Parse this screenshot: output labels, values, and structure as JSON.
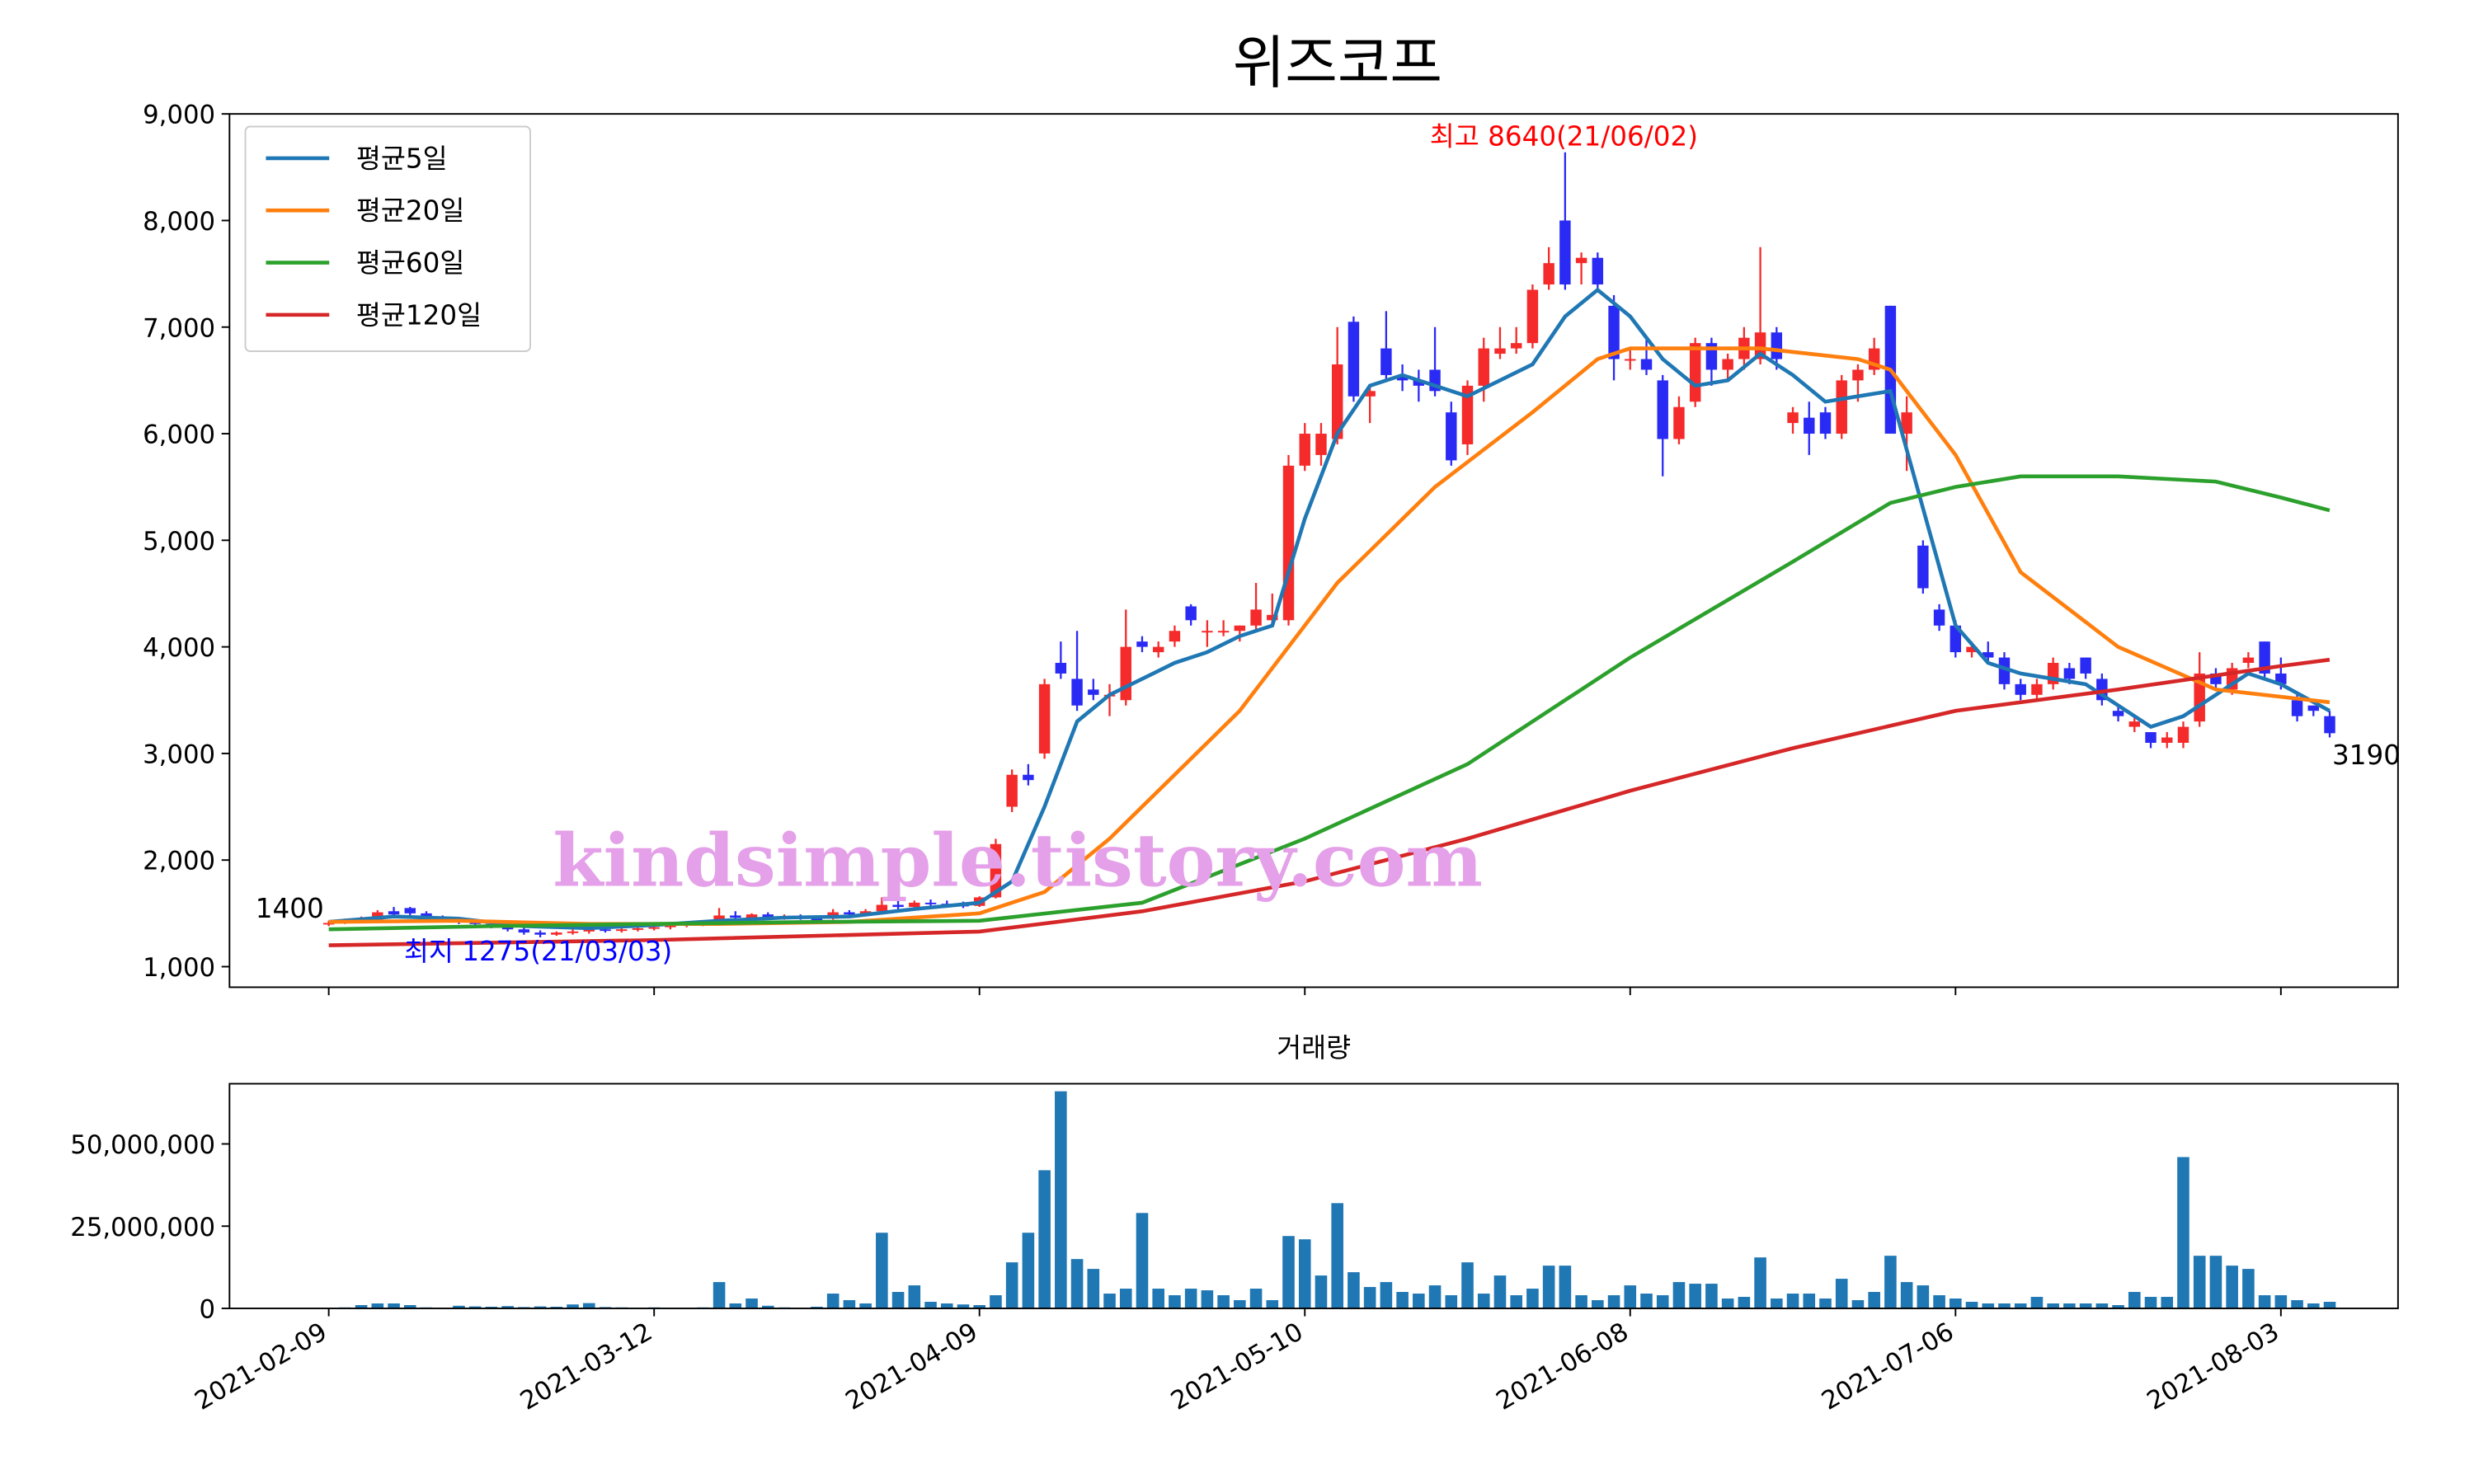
{
  "chart_data": [
    {
      "type": "candlestick",
      "title": "위즈코프",
      "xlim": [
        -6.1,
        127.2
      ],
      "ylim": [
        807,
        9000
      ],
      "yticks": [
        {
          "value": 1000,
          "label": "1,000"
        },
        {
          "value": 2000,
          "label": "2,000"
        },
        {
          "value": 3000,
          "label": "3,000"
        },
        {
          "value": 4000,
          "label": "4,000"
        },
        {
          "value": 5000,
          "label": "5,000"
        },
        {
          "value": 6000,
          "label": "6,000"
        },
        {
          "value": 7000,
          "label": "7,000"
        },
        {
          "value": 8000,
          "label": "8,000"
        },
        {
          "value": 9000,
          "label": "9,000"
        }
      ],
      "up_color": "#f52a2a",
      "down_color": "#2a2af5",
      "candles": [
        [
          1400,
          1430,
          1380,
          1410
        ],
        [
          1410,
          1450,
          1400,
          1430
        ],
        [
          1430,
          1470,
          1420,
          1440
        ],
        [
          1440,
          1530,
          1430,
          1510
        ],
        [
          1520,
          1560,
          1480,
          1490
        ],
        [
          1550,
          1560,
          1480,
          1500
        ],
        [
          1500,
          1520,
          1440,
          1460
        ],
        [
          1460,
          1480,
          1420,
          1440
        ],
        [
          1440,
          1460,
          1400,
          1420
        ],
        [
          1420,
          1440,
          1380,
          1400
        ],
        [
          1400,
          1420,
          1360,
          1380
        ],
        [
          1380,
          1400,
          1330,
          1350
        ],
        [
          1350,
          1370,
          1300,
          1320
        ],
        [
          1320,
          1340,
          1275,
          1300
        ],
        [
          1300,
          1330,
          1290,
          1320
        ],
        [
          1320,
          1350,
          1300,
          1330
        ],
        [
          1330,
          1380,
          1310,
          1350
        ],
        [
          1350,
          1370,
          1320,
          1340
        ],
        [
          1340,
          1360,
          1320,
          1350
        ],
        [
          1350,
          1370,
          1330,
          1360
        ],
        [
          1360,
          1390,
          1340,
          1370
        ],
        [
          1370,
          1400,
          1350,
          1390
        ],
        [
          1390,
          1420,
          1370,
          1400
        ],
        [
          1400,
          1430,
          1380,
          1410
        ],
        [
          1430,
          1550,
          1420,
          1480
        ],
        [
          1480,
          1520,
          1440,
          1460
        ],
        [
          1460,
          1500,
          1440,
          1490
        ],
        [
          1490,
          1510,
          1440,
          1460
        ],
        [
          1460,
          1490,
          1440,
          1470
        ],
        [
          1470,
          1490,
          1440,
          1450
        ],
        [
          1450,
          1470,
          1430,
          1440
        ],
        [
          1450,
          1540,
          1440,
          1510
        ],
        [
          1510,
          1530,
          1470,
          1490
        ],
        [
          1490,
          1540,
          1480,
          1520
        ],
        [
          1520,
          1650,
          1510,
          1580
        ],
        [
          1580,
          1620,
          1530,
          1560
        ],
        [
          1560,
          1620,
          1550,
          1600
        ],
        [
          1600,
          1630,
          1570,
          1590
        ],
        [
          1590,
          1620,
          1560,
          1580
        ],
        [
          1580,
          1610,
          1550,
          1570
        ],
        [
          1570,
          1660,
          1560,
          1650
        ],
        [
          1650,
          2200,
          1640,
          2150
        ],
        [
          2500,
          2850,
          2450,
          2800
        ],
        [
          2800,
          2900,
          2700,
          2750
        ],
        [
          3000,
          3700,
          2950,
          3650
        ],
        [
          3850,
          4050,
          3700,
          3750
        ],
        [
          3700,
          4150,
          3400,
          3450
        ],
        [
          3600,
          3700,
          3500,
          3550
        ],
        [
          3550,
          3650,
          3350,
          3550
        ],
        [
          3500,
          4350,
          3450,
          4000
        ],
        [
          4050,
          4100,
          3950,
          4000
        ],
        [
          3950,
          4050,
          3900,
          4000
        ],
        [
          4050,
          4200,
          4000,
          4150
        ],
        [
          4380,
          4400,
          4200,
          4250
        ],
        [
          4150,
          4250,
          4000,
          4150
        ],
        [
          4150,
          4250,
          4100,
          4150
        ],
        [
          4150,
          4200,
          4050,
          4200
        ],
        [
          4200,
          4600,
          4150,
          4350
        ],
        [
          4250,
          4500,
          4200,
          4300
        ],
        [
          4250,
          5800,
          4200,
          5700
        ],
        [
          5700,
          6100,
          5650,
          6000
        ],
        [
          5800,
          6100,
          5700,
          6000
        ],
        [
          5950,
          7000,
          5900,
          6650
        ],
        [
          7050,
          7100,
          6300,
          6350
        ],
        [
          6350,
          6450,
          6100,
          6400
        ],
        [
          6800,
          7150,
          6500,
          6550
        ],
        [
          6550,
          6650,
          6400,
          6500
        ],
        [
          6500,
          6600,
          6300,
          6450
        ],
        [
          6600,
          7000,
          6350,
          6400
        ],
        [
          6200,
          6300,
          5700,
          5750
        ],
        [
          5900,
          6500,
          5800,
          6450
        ],
        [
          6450,
          6900,
          6300,
          6800
        ],
        [
          6750,
          7000,
          6700,
          6800
        ],
        [
          6800,
          7000,
          6750,
          6850
        ],
        [
          6850,
          7400,
          6800,
          7350
        ],
        [
          7400,
          7750,
          7350,
          7600
        ],
        [
          8000,
          8640,
          7350,
          7400
        ],
        [
          7600,
          7700,
          7400,
          7650
        ],
        [
          7650,
          7700,
          7350,
          7400
        ],
        [
          7200,
          7300,
          6500,
          6700
        ],
        [
          6700,
          6800,
          6600,
          6700
        ],
        [
          6700,
          6900,
          6550,
          6600
        ],
        [
          6500,
          6550,
          5600,
          5950
        ],
        [
          5950,
          6350,
          5900,
          6250
        ],
        [
          6300,
          6900,
          6250,
          6850
        ],
        [
          6850,
          6900,
          6450,
          6600
        ],
        [
          6600,
          6750,
          6500,
          6700
        ],
        [
          6700,
          7000,
          6600,
          6900
        ],
        [
          6700,
          7750,
          6650,
          6950
        ],
        [
          6950,
          7000,
          6600,
          6700
        ],
        [
          6100,
          6250,
          6000,
          6200
        ],
        [
          6150,
          6300,
          5800,
          6000
        ],
        [
          6200,
          6250,
          5950,
          6000
        ],
        [
          6000,
          6550,
          5950,
          6500
        ],
        [
          6500,
          6650,
          6300,
          6600
        ],
        [
          6600,
          6900,
          6550,
          6800
        ],
        [
          7200,
          7200,
          6000,
          6000
        ],
        [
          6000,
          6350,
          5650,
          6200
        ],
        [
          4950,
          5000,
          4500,
          4550
        ],
        [
          4350,
          4400,
          4150,
          4200
        ],
        [
          4200,
          4250,
          3900,
          3950
        ],
        [
          3950,
          4050,
          3900,
          4000
        ],
        [
          3950,
          4050,
          3850,
          3900
        ],
        [
          3900,
          3950,
          3600,
          3650
        ],
        [
          3650,
          3700,
          3500,
          3550
        ],
        [
          3550,
          3700,
          3500,
          3650
        ],
        [
          3650,
          3900,
          3600,
          3850
        ],
        [
          3800,
          3850,
          3650,
          3700
        ],
        [
          3900,
          3900,
          3700,
          3750
        ],
        [
          3700,
          3750,
          3450,
          3500
        ],
        [
          3400,
          3450,
          3300,
          3350
        ],
        [
          3250,
          3350,
          3200,
          3300
        ],
        [
          3200,
          3200,
          3050,
          3100
        ],
        [
          3100,
          3200,
          3050,
          3150
        ],
        [
          3100,
          3300,
          3050,
          3250
        ],
        [
          3300,
          3950,
          3250,
          3750
        ],
        [
          3750,
          3800,
          3600,
          3650
        ],
        [
          3600,
          3850,
          3550,
          3800
        ],
        [
          3850,
          3950,
          3800,
          3900
        ],
        [
          4050,
          4050,
          3700,
          3750
        ],
        [
          3750,
          3900,
          3600,
          3650
        ],
        [
          3500,
          3550,
          3300,
          3350
        ],
        [
          3450,
          3450,
          3350,
          3400
        ],
        [
          3350,
          3400,
          3150,
          3190
        ]
      ],
      "series": [
        {
          "name": "평균5일",
          "color": "#1f77b4",
          "x": [
            0,
            4,
            8,
            12,
            16,
            20,
            24,
            28,
            32,
            36,
            40,
            42,
            44,
            46,
            48,
            50,
            52,
            54,
            56,
            58,
            60,
            62,
            64,
            66,
            68,
            70,
            72,
            74,
            76,
            78,
            80,
            82,
            84,
            86,
            88,
            90,
            92,
            94,
            96,
            98,
            100,
            102,
            104,
            106,
            108,
            110,
            112,
            114,
            116,
            118,
            120,
            123
          ],
          "values": [
            1420,
            1470,
            1450,
            1380,
            1360,
            1390,
            1430,
            1460,
            1470,
            1540,
            1600,
            1800,
            2500,
            3300,
            3550,
            3700,
            3850,
            3950,
            4100,
            4200,
            5200,
            6000,
            6450,
            6550,
            6450,
            6350,
            6500,
            6650,
            7100,
            7350,
            7100,
            6700,
            6450,
            6500,
            6750,
            6550,
            6300,
            6350,
            6400,
            5300,
            4200,
            3850,
            3750,
            3700,
            3650,
            3450,
            3250,
            3350,
            3550,
            3750,
            3650,
            3400
          ]
        },
        {
          "name": "평균20일",
          "color": "#ff7f0e",
          "x": [
            0,
            8,
            16,
            24,
            32,
            40,
            44,
            48,
            56,
            62,
            68,
            74,
            78,
            80,
            88,
            94,
            96,
            100,
            104,
            110,
            116,
            123
          ],
          "values": [
            1420,
            1430,
            1400,
            1400,
            1420,
            1500,
            1700,
            2200,
            3400,
            4600,
            5500,
            6200,
            6700,
            6800,
            6800,
            6700,
            6600,
            5800,
            4700,
            4000,
            3600,
            3480
          ]
        },
        {
          "name": "평균60일",
          "color": "#2ca02c",
          "x": [
            0,
            10,
            20,
            30,
            40,
            50,
            60,
            70,
            80,
            90,
            96,
            100,
            104,
            110,
            116,
            120,
            123
          ],
          "values": [
            1350,
            1380,
            1400,
            1420,
            1430,
            1600,
            2200,
            2900,
            3900,
            4800,
            5350,
            5500,
            5600,
            5600,
            5550,
            5400,
            5280
          ]
        },
        {
          "name": "평균120일",
          "color": "#d62728",
          "x": [
            0,
            20,
            40,
            50,
            60,
            70,
            80,
            90,
            100,
            110,
            120,
            123
          ],
          "values": [
            1200,
            1250,
            1330,
            1520,
            1800,
            2200,
            2650,
            3050,
            3400,
            3600,
            3820,
            3880
          ]
        }
      ],
      "annotations": [
        {
          "text": "최고 8640(21/06/02)",
          "color": "red"
        },
        {
          "text": "최지 1275(21/03/03)",
          "color": "blue"
        },
        {
          "text": "1400",
          "color": "black"
        },
        {
          "text": "3190",
          "color": "black"
        }
      ],
      "watermark": "kindsimple.tistory.com"
    },
    {
      "type": "bar",
      "title": "거래량",
      "color": "#1f77b4",
      "xlim": [
        -6.1,
        127.2
      ],
      "ylim": [
        0,
        68300000
      ],
      "yticks": [
        {
          "value": 0,
          "label": "0"
        },
        {
          "value": 25000000,
          "label": "25,000,000"
        },
        {
          "value": 50000000,
          "label": "50,000,000"
        }
      ],
      "xticks": [
        {
          "value": 0,
          "label": "2021-02-09"
        },
        {
          "value": 20,
          "label": "2021-03-12"
        },
        {
          "value": 40,
          "label": "2021-04-09"
        },
        {
          "value": 60,
          "label": "2021-05-10"
        },
        {
          "value": 80,
          "label": "2021-06-08"
        },
        {
          "value": 100,
          "label": "2021-07-06"
        },
        {
          "value": 120,
          "label": "2021-08-03"
        }
      ],
      "values": [
        200000,
        300000,
        1000000,
        1500000,
        1500000,
        1000000,
        300000,
        200000,
        800000,
        600000,
        500000,
        700000,
        400000,
        600000,
        500000,
        1200000,
        1600000,
        400000,
        300000,
        200000,
        300000,
        200000,
        200000,
        300000,
        8000000,
        1500000,
        3000000,
        800000,
        300000,
        200000,
        500000,
        4500000,
        2500000,
        1500000,
        23000000,
        5000000,
        7000000,
        2000000,
        1500000,
        1200000,
        1000000,
        4000000,
        14000000,
        23000000,
        42000000,
        66000000,
        15000000,
        12000000,
        4500000,
        6000000,
        29000000,
        6000000,
        4000000,
        6000000,
        5500000,
        4000000,
        2500000,
        6000000,
        2500000,
        22000000,
        21000000,
        10000000,
        32000000,
        11000000,
        6500000,
        8000000,
        5000000,
        4500000,
        7000000,
        4000000,
        14000000,
        4500000,
        10000000,
        4000000,
        6000000,
        13000000,
        13000000,
        4000000,
        2500000,
        4000000,
        7000000,
        4500000,
        4000000,
        8000000,
        7500000,
        7500000,
        3000000,
        3500000,
        15500000,
        3000000,
        4500000,
        4500000,
        3000000,
        9000000,
        2500000,
        5000000,
        16000000,
        8000000,
        7000000,
        4000000,
        3000000,
        2000000,
        1500000,
        1500000,
        1500000,
        3500000,
        1500000,
        1500000,
        1500000,
        1500000,
        1000000,
        5000000,
        3500000,
        3500000,
        46000000,
        16000000,
        16000000,
        13000000,
        12000000,
        4000000,
        4000000,
        2500000,
        1500000,
        2000000
      ]
    }
  ]
}
